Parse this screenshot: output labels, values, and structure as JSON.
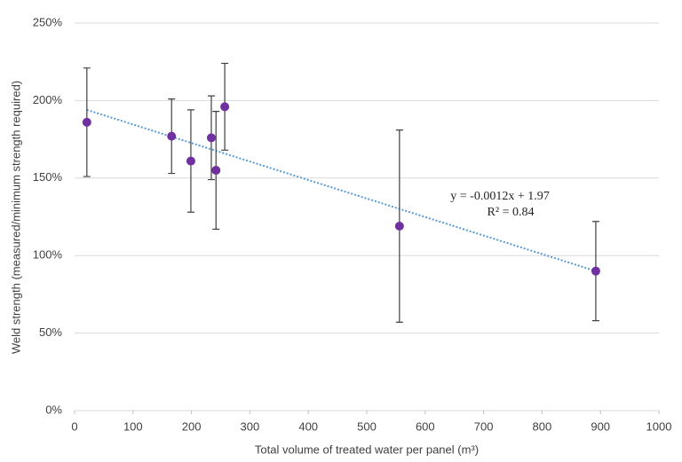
{
  "chart_data": {
    "type": "scatter",
    "x_label": "Total volume of treated water per panel (m³)",
    "y_label": "Weld  strength (measured/minimum strength required)",
    "x": [
      21,
      166,
      199,
      234,
      242,
      257,
      556,
      892
    ],
    "values": [
      186,
      177,
      161,
      176,
      155,
      196,
      119,
      90
    ],
    "errors": [
      35,
      24,
      33,
      27,
      38,
      28,
      62,
      32
    ],
    "color": "#7030a0",
    "trendline": {
      "x": [
        21,
        892
      ],
      "values": [
        194,
        90
      ],
      "color": "#5b9bd5"
    },
    "annotations": [
      "y = -0.0012x + 1.97",
      "R² = 0.84"
    ],
    "xlim": [
      0,
      1000
    ],
    "xticks": [
      0,
      100,
      200,
      300,
      400,
      500,
      600,
      700,
      800,
      900,
      1000
    ],
    "ylim": [
      0,
      250
    ],
    "yticks": [
      {
        "value": 0,
        "label": "0%"
      },
      {
        "value": 50,
        "label": "50%"
      },
      {
        "value": 100,
        "label": "100%"
      },
      {
        "value": 150,
        "label": "150%"
      },
      {
        "value": 200,
        "label": "200%"
      },
      {
        "value": 250,
        "label": "250%"
      }
    ],
    "grid": true
  }
}
